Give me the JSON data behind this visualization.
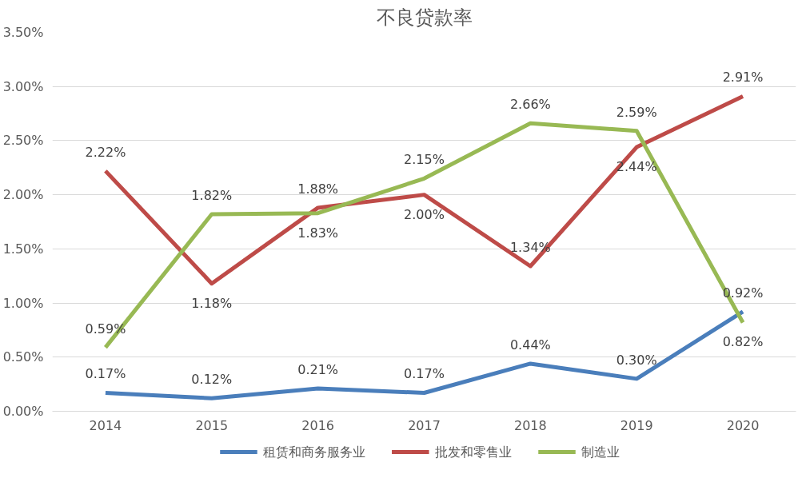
{
  "chart_data": {
    "type": "line",
    "title": "不良贷款率",
    "categories": [
      "2014",
      "2015",
      "2016",
      "2017",
      "2018",
      "2019",
      "2020"
    ],
    "ylim": [
      0,
      3.5
    ],
    "yticks": [
      {
        "value": 0,
        "label": "0.00%"
      },
      {
        "value": 0.5,
        "label": "0.50%"
      },
      {
        "value": 1,
        "label": "1.00%"
      },
      {
        "value": 1.5,
        "label": "1.50%"
      },
      {
        "value": 2,
        "label": "2.00%"
      },
      {
        "value": 2.5,
        "label": "2.50%"
      },
      {
        "value": 3,
        "label": "3.00%"
      },
      {
        "value": 3.5,
        "label": "3.50%"
      }
    ],
    "grid": "y",
    "legend": "bottom",
    "marker": "none",
    "line_style": "solid",
    "series": [
      {
        "name": "租赁和商务服务业",
        "color": "#4a7ebb",
        "values": [
          0.17,
          0.12,
          0.21,
          0.17,
          0.44,
          0.3,
          0.92
        ],
        "value_labels": [
          "0.17%",
          "0.12%",
          "0.21%",
          "0.17%",
          "0.44%",
          "0.30%",
          "0.92%"
        ]
      },
      {
        "name": "批发和零售业",
        "color": "#be4b48",
        "values": [
          2.22,
          1.18,
          1.88,
          2.0,
          1.34,
          2.44,
          2.91
        ],
        "value_labels": [
          "2.22%",
          "1.18%",
          "1.88%",
          "2.00%",
          "1.34%",
          "2.44%",
          "2.91%"
        ]
      },
      {
        "name": "制造业",
        "color": "#98b954",
        "values": [
          0.59,
          1.82,
          1.83,
          2.15,
          2.66,
          2.59,
          0.82
        ],
        "value_labels": [
          "0.59%",
          "1.82%",
          "1.83%",
          "2.15%",
          "2.66%",
          "2.59%",
          "0.82%"
        ]
      }
    ]
  }
}
